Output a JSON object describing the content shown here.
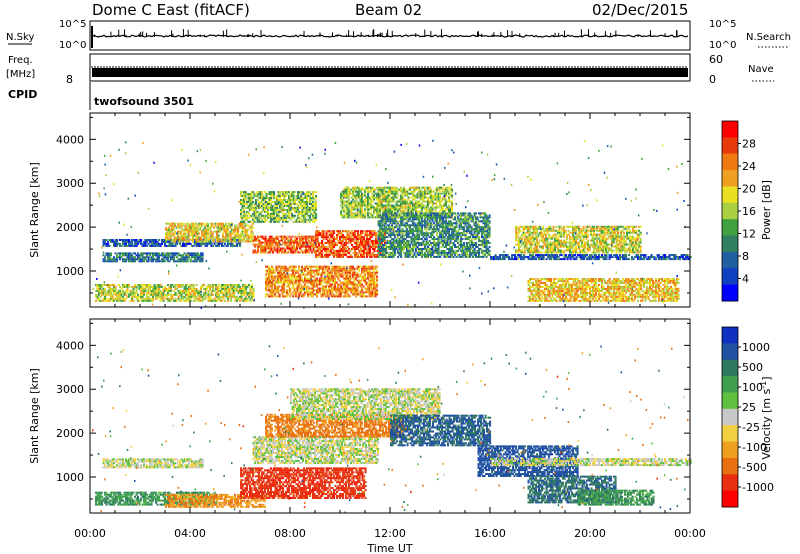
{
  "header": {
    "station": "Dome C East (fitACF)",
    "beam": "Beam 02",
    "date": "02/Dec/2015"
  },
  "top_panels": {
    "nsky_label": "N.Sky",
    "nsky_tick_high": "10^5",
    "nsky_tick_low": "10^0",
    "nsearch_label": "N.Search",
    "freq_label_1": "Freq.",
    "freq_label_2": "[MHz]",
    "freq_tick_low": "8",
    "nave_tick_high": "60",
    "nave_tick_low": "0",
    "nave_label": "Nave",
    "cpid_label": "CPID",
    "cpid_text": "twofsound 3501"
  },
  "chart_data": [
    {
      "type": "heatmap",
      "panel": "power",
      "ylabel": "Slant Range [km]",
      "xlabel": "",
      "colorbar_label": "Power [dB]",
      "colorbar_ticks": [
        "28",
        "24",
        "20",
        "16",
        "12",
        "8",
        "4"
      ],
      "colorbar_colors": [
        "#ff0000",
        "#e83a0a",
        "#f07a10",
        "#f0a020",
        "#e8e020",
        "#a8d040",
        "#40a040",
        "#308060",
        "#2060a0",
        "#1040c0",
        "#0000ff"
      ],
      "x_ticks": [
        "00:00",
        "04:00",
        "08:00",
        "12:00",
        "16:00",
        "20:00",
        "00:00"
      ],
      "y_ticks": [
        1000,
        2000,
        3000,
        4000
      ],
      "ylim": [
        180,
        4600
      ],
      "xlim": [
        0,
        24
      ],
      "echo_regions": [
        {
          "t0": 0.2,
          "t1": 6.5,
          "r0": 300,
          "r1": 700,
          "value": 18
        },
        {
          "t0": 0.5,
          "t1": 4.5,
          "r0": 1200,
          "r1": 1400,
          "value": 10
        },
        {
          "t0": 0.5,
          "t1": 6.0,
          "r0": 1550,
          "r1": 1700,
          "value": 8
        },
        {
          "t0": 3.0,
          "t1": 6.5,
          "r0": 1650,
          "r1": 2100,
          "value": 20
        },
        {
          "t0": 6.5,
          "t1": 9.0,
          "r0": 1400,
          "r1": 1800,
          "value": 26
        },
        {
          "t0": 9.0,
          "t1": 11.8,
          "r0": 1300,
          "r1": 1900,
          "value": 27
        },
        {
          "t0": 7.0,
          "t1": 11.5,
          "r0": 400,
          "r1": 1100,
          "value": 24
        },
        {
          "t0": 6.0,
          "t1": 9.0,
          "r0": 2100,
          "r1": 2800,
          "value": 16
        },
        {
          "t0": 10.0,
          "t1": 14.5,
          "r0": 2200,
          "r1": 2900,
          "value": 17
        },
        {
          "t0": 11.5,
          "t1": 16.0,
          "r0": 1300,
          "r1": 2300,
          "value": 12
        },
        {
          "t0": 16.0,
          "t1": 24.0,
          "r0": 1250,
          "r1": 1350,
          "value": 8
        },
        {
          "t0": 17.0,
          "t1": 22.0,
          "r0": 1400,
          "r1": 2000,
          "value": 19
        },
        {
          "t0": 17.5,
          "t1": 23.5,
          "r0": 300,
          "r1": 800,
          "value": 21
        }
      ]
    },
    {
      "type": "heatmap",
      "panel": "velocity",
      "ylabel": "Slant Range [km]",
      "xlabel": "Time UT",
      "colorbar_label": "Velocity [m s",
      "colorbar_label_sup": "-1",
      "colorbar_label_end": "]",
      "colorbar_ticks": [
        "1000",
        "500",
        "100",
        "25",
        "-25",
        "-100",
        "-500",
        "-1000"
      ],
      "colorbar_colors": [
        "#1030c0",
        "#2050a0",
        "#307860",
        "#40a050",
        "#60c040",
        "#c8c8c8",
        "#f0d040",
        "#f0a020",
        "#e87010",
        "#e83010",
        "#ff0000"
      ],
      "x_ticks": [
        "00:00",
        "04:00",
        "08:00",
        "12:00",
        "16:00",
        "20:00",
        "00:00"
      ],
      "y_ticks": [
        1000,
        2000,
        3000,
        4000
      ],
      "ylim": [
        180,
        4600
      ],
      "xlim": [
        0,
        24
      ],
      "echo_regions": [
        {
          "t0": 0.2,
          "t1": 5.0,
          "r0": 350,
          "r1": 650,
          "value": 60
        },
        {
          "t0": 3.0,
          "t1": 7.0,
          "r0": 300,
          "r1": 600,
          "value": -60
        },
        {
          "t0": 0.5,
          "t1": 4.5,
          "r0": 1200,
          "r1": 1400,
          "value": 0
        },
        {
          "t0": 6.0,
          "t1": 11.0,
          "r0": 500,
          "r1": 1200,
          "value": -300
        },
        {
          "t0": 6.5,
          "t1": 11.5,
          "r0": 1300,
          "r1": 1900,
          "value": 0
        },
        {
          "t0": 7.0,
          "t1": 12.5,
          "r0": 1900,
          "r1": 2400,
          "value": -100
        },
        {
          "t0": 8.0,
          "t1": 14.0,
          "r0": 2300,
          "r1": 3000,
          "value": 0
        },
        {
          "t0": 12.0,
          "t1": 16.0,
          "r0": 1700,
          "r1": 2400,
          "value": 200
        },
        {
          "t0": 15.5,
          "t1": 19.5,
          "r0": 1000,
          "r1": 1700,
          "value": 300
        },
        {
          "t0": 16.0,
          "t1": 24.0,
          "r0": 1250,
          "r1": 1400,
          "value": 0
        },
        {
          "t0": 17.5,
          "t1": 21.0,
          "r0": 400,
          "r1": 1000,
          "value": 150
        },
        {
          "t0": 19.5,
          "t1": 22.5,
          "r0": 350,
          "r1": 700,
          "value": 60
        }
      ]
    }
  ]
}
